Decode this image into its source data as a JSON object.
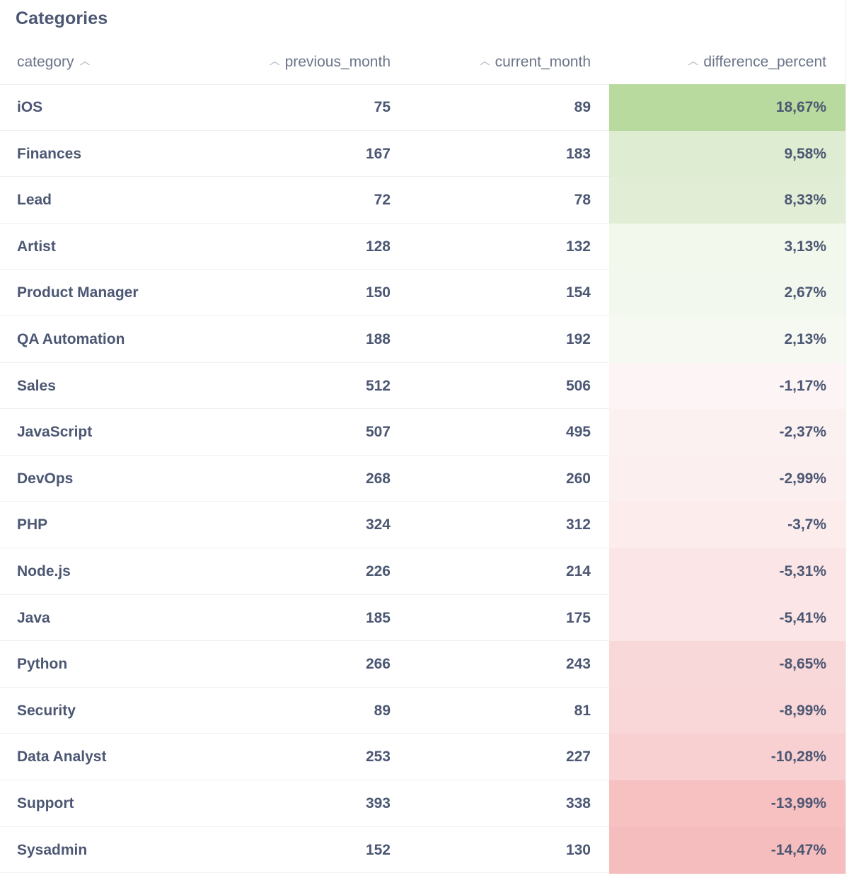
{
  "card": {
    "title": "Categories"
  },
  "table": {
    "columns": [
      {
        "label": "category",
        "sort_icon": "chevron-up-icon"
      },
      {
        "label": "previous_month",
        "sort_icon": "chevron-up-icon"
      },
      {
        "label": "current_month",
        "sort_icon": "chevron-up-icon"
      },
      {
        "label": "difference_percent",
        "sort_icon": "chevron-up-icon"
      }
    ],
    "rows": [
      {
        "category": "iOS",
        "previous_month": "75",
        "current_month": "89",
        "difference_percent": "18,67%",
        "color": "#b9da9e"
      },
      {
        "category": "Finances",
        "previous_month": "167",
        "current_month": "183",
        "difference_percent": "9,58%",
        "color": "#deecd1"
      },
      {
        "category": "Lead",
        "previous_month": "72",
        "current_month": "78",
        "difference_percent": "8,33%",
        "color": "#e1eed5"
      },
      {
        "category": "Artist",
        "previous_month": "128",
        "current_month": "132",
        "difference_percent": "3,13%",
        "color": "#f2f8ec"
      },
      {
        "category": "Product Manager",
        "previous_month": "150",
        "current_month": "154",
        "difference_percent": "2,67%",
        "color": "#f3f8ee"
      },
      {
        "category": "QA Automation",
        "previous_month": "188",
        "current_month": "192",
        "difference_percent": "2,13%",
        "color": "#f5f9f1"
      },
      {
        "category": "Sales",
        "previous_month": "512",
        "current_month": "506",
        "difference_percent": "-1,17%",
        "color": "#fdf5f5"
      },
      {
        "category": "JavaScript",
        "previous_month": "507",
        "current_month": "495",
        "difference_percent": "-2,37%",
        "color": "#fcf1f1"
      },
      {
        "category": "DevOps",
        "previous_month": "268",
        "current_month": "260",
        "difference_percent": "-2,99%",
        "color": "#fcefef"
      },
      {
        "category": "PHP",
        "previous_month": "324",
        "current_month": "312",
        "difference_percent": "-3,7%",
        "color": "#fcecec"
      },
      {
        "category": "Node.js",
        "previous_month": "226",
        "current_month": "214",
        "difference_percent": "-5,31%",
        "color": "#fbe5e6"
      },
      {
        "category": "Java",
        "previous_month": "185",
        "current_month": "175",
        "difference_percent": "-5,41%",
        "color": "#fbe5e6"
      },
      {
        "category": "Python",
        "previous_month": "266",
        "current_month": "243",
        "difference_percent": "-8,65%",
        "color": "#f9d8d9"
      },
      {
        "category": "Security",
        "previous_month": "89",
        "current_month": "81",
        "difference_percent": "-8,99%",
        "color": "#f9d6d7"
      },
      {
        "category": "Data Analyst",
        "previous_month": "253",
        "current_month": "227",
        "difference_percent": "-10,28%",
        "color": "#f8d0d1"
      },
      {
        "category": "Support",
        "previous_month": "393",
        "current_month": "338",
        "difference_percent": "-13,99%",
        "color": "#f7c0c1"
      },
      {
        "category": "Sysadmin",
        "previous_month": "152",
        "current_month": "130",
        "difference_percent": "-14,47%",
        "color": "#f6bdbe"
      }
    ]
  }
}
